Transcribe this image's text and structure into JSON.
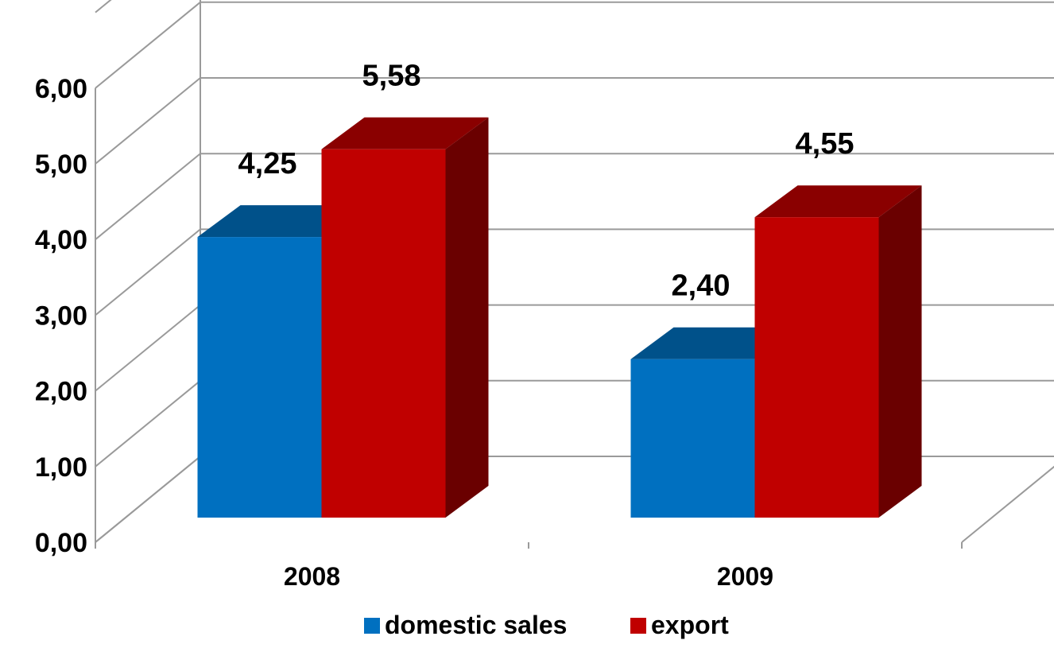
{
  "chart_data": {
    "type": "bar",
    "categories": [
      "2008",
      "2009"
    ],
    "series": [
      {
        "name": "domestic sales",
        "values": [
          4.25,
          2.4
        ],
        "labels": [
          "4,25",
          "2,40"
        ],
        "color": "#0070C0"
      },
      {
        "name": "export",
        "values": [
          5.58,
          4.55
        ],
        "labels": [
          "5,58",
          "4,55"
        ],
        "color": "#C00000"
      }
    ],
    "y_ticks": [
      "0,00",
      "1,00",
      "2,00",
      "3,00",
      "4,00",
      "5,00",
      "6,00"
    ],
    "ylim": [
      0,
      6
    ],
    "grid": true,
    "legend_position": "bottom",
    "style": "3d"
  }
}
